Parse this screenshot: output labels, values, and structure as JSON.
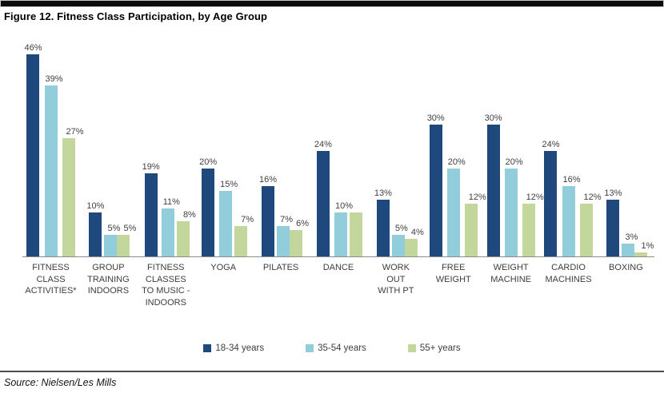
{
  "figure": {
    "title": "Figure 12. Fitness Class Participation, by Age Group",
    "source": "Source: Nielsen/Les Mills"
  },
  "chart_data": {
    "type": "bar",
    "title": "Figure 12. Fitness Class Participation, by Age Group",
    "categories": [
      "FITNESS CLASS ACTIVITIES*",
      "GROUP TRAINING INDOORS",
      "FITNESS CLASSES TO MUSIC - INDOORS",
      "YOGA",
      "PILATES",
      "DANCE",
      "WORK OUT WITH PT",
      "FREE WEIGHT",
      "WEIGHT MACHINE",
      "CARDIO MACHINES",
      "BOXING"
    ],
    "category_display": [
      "FITNESS\nCLASS\nACTIVITIES*",
      "GROUP\nTRAINING\nINDOORS",
      "FITNESS\nCLASSES\nTO MUSIC -\nINDOORS",
      "YOGA",
      "PILATES",
      "DANCE",
      "WORK\nOUT\nWITH PT",
      "FREE\nWEIGHT",
      "WEIGHT\nMACHINE",
      "CARDIO\nMACHINES",
      "BOXING"
    ],
    "unit": "%",
    "ylim": [
      0,
      50
    ],
    "grid": false,
    "legend_position": "bottom-center",
    "series": [
      {
        "name": "18-34 years",
        "color": "#1F497D",
        "values": [
          46,
          10,
          19,
          20,
          16,
          24,
          13,
          30,
          30,
          24,
          13
        ],
        "labels": [
          "46%",
          "10%",
          "19%",
          "20%",
          "16%",
          "24%",
          "13%",
          "30%",
          "30%",
          "24%",
          "13%"
        ]
      },
      {
        "name": "35-54 years",
        "color": "#92CDDC",
        "values": [
          39,
          5,
          11,
          15,
          7,
          10,
          5,
          20,
          20,
          16,
          3
        ],
        "labels": [
          "39%",
          "5%",
          "11%",
          "15%",
          "7%",
          "10%",
          "5%",
          "20%",
          "20%",
          "16%",
          "3%"
        ]
      },
      {
        "name": "55+ years",
        "color": "#C3D69B",
        "values": [
          27,
          5,
          8,
          7,
          6,
          10,
          4,
          12,
          12,
          12,
          1
        ],
        "labels": [
          "27%",
          "5%",
          "8%",
          "7%",
          "6%",
          "",
          "4%",
          "12%",
          "12%",
          "12%",
          "1%"
        ]
      }
    ],
    "axis_line_color": "#8C8C8C"
  }
}
